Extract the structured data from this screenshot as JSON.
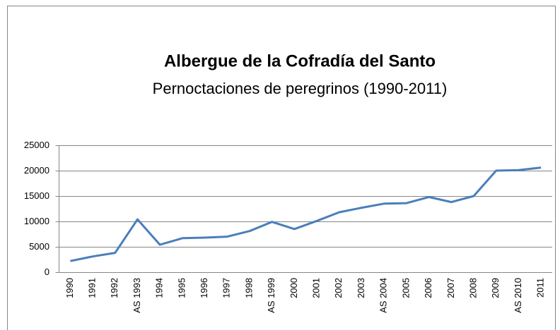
{
  "chart_data": {
    "type": "line",
    "title": "Albergue de la Cofradía del Santo",
    "subtitle": "Pernoctaciones de peregrinos (1990-2011)",
    "categories": [
      "1990",
      "1991",
      "1992",
      "AS 1993",
      "1994",
      "1995",
      "1996",
      "1997",
      "1998",
      "AS 1999",
      "2000",
      "2001",
      "2002",
      "2003",
      "AS 2004",
      "2005",
      "2006",
      "2007",
      "2008",
      "2009",
      "AS 2010",
      "2011"
    ],
    "values": [
      2200,
      3100,
      3800,
      10400,
      5400,
      6700,
      6800,
      7000,
      8100,
      9900,
      8500,
      10100,
      11800,
      12700,
      13500,
      13600,
      14800,
      13800,
      15000,
      20000,
      20100,
      20600
    ],
    "color": "#4a7ebb",
    "ylim": [
      0,
      25000
    ],
    "yticks": [
      0,
      5000,
      10000,
      15000,
      20000,
      25000
    ],
    "grid": true
  }
}
